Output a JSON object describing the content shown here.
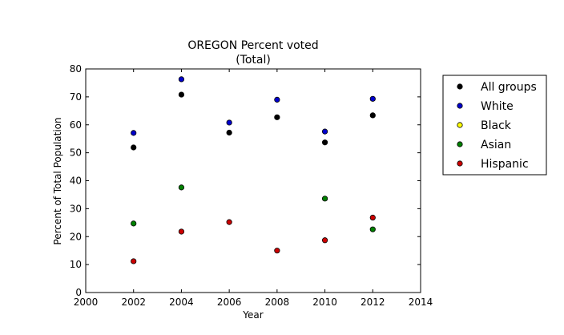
{
  "chart_data": {
    "type": "scatter",
    "title": "OREGON Percent voted",
    "subtitle": "(Total)",
    "xlabel": "Year",
    "ylabel": "Percent of Total Population",
    "xlim": [
      2000,
      2014
    ],
    "ylim": [
      0,
      80
    ],
    "xticks": [
      2000,
      2002,
      2004,
      2006,
      2008,
      2010,
      2012,
      2014
    ],
    "yticks": [
      0,
      10,
      20,
      30,
      40,
      50,
      60,
      70,
      80
    ],
    "grid": false,
    "legend_position": "outside-right",
    "series": [
      {
        "name": "All groups",
        "color": "#000000",
        "x": [
          2002,
          2004,
          2006,
          2008,
          2010,
          2012
        ],
        "values": [
          51.9,
          70.8,
          57.2,
          62.7,
          53.7,
          63.4
        ]
      },
      {
        "name": "White",
        "color": "#0000cc",
        "x": [
          2002,
          2004,
          2006,
          2008,
          2010,
          2012
        ],
        "values": [
          57.1,
          76.3,
          60.8,
          69.0,
          57.6,
          69.3
        ]
      },
      {
        "name": "Black",
        "color": "#ffff00",
        "x": [],
        "values": []
      },
      {
        "name": "Asian",
        "color": "#008000",
        "x": [
          2002,
          2004,
          2010,
          2012
        ],
        "values": [
          24.7,
          37.6,
          33.6,
          22.6
        ]
      },
      {
        "name": "Hispanic",
        "color": "#cc0000",
        "x": [
          2002,
          2004,
          2006,
          2008,
          2010,
          2012
        ],
        "values": [
          11.2,
          21.8,
          25.2,
          15.0,
          18.7,
          26.8
        ]
      }
    ]
  }
}
